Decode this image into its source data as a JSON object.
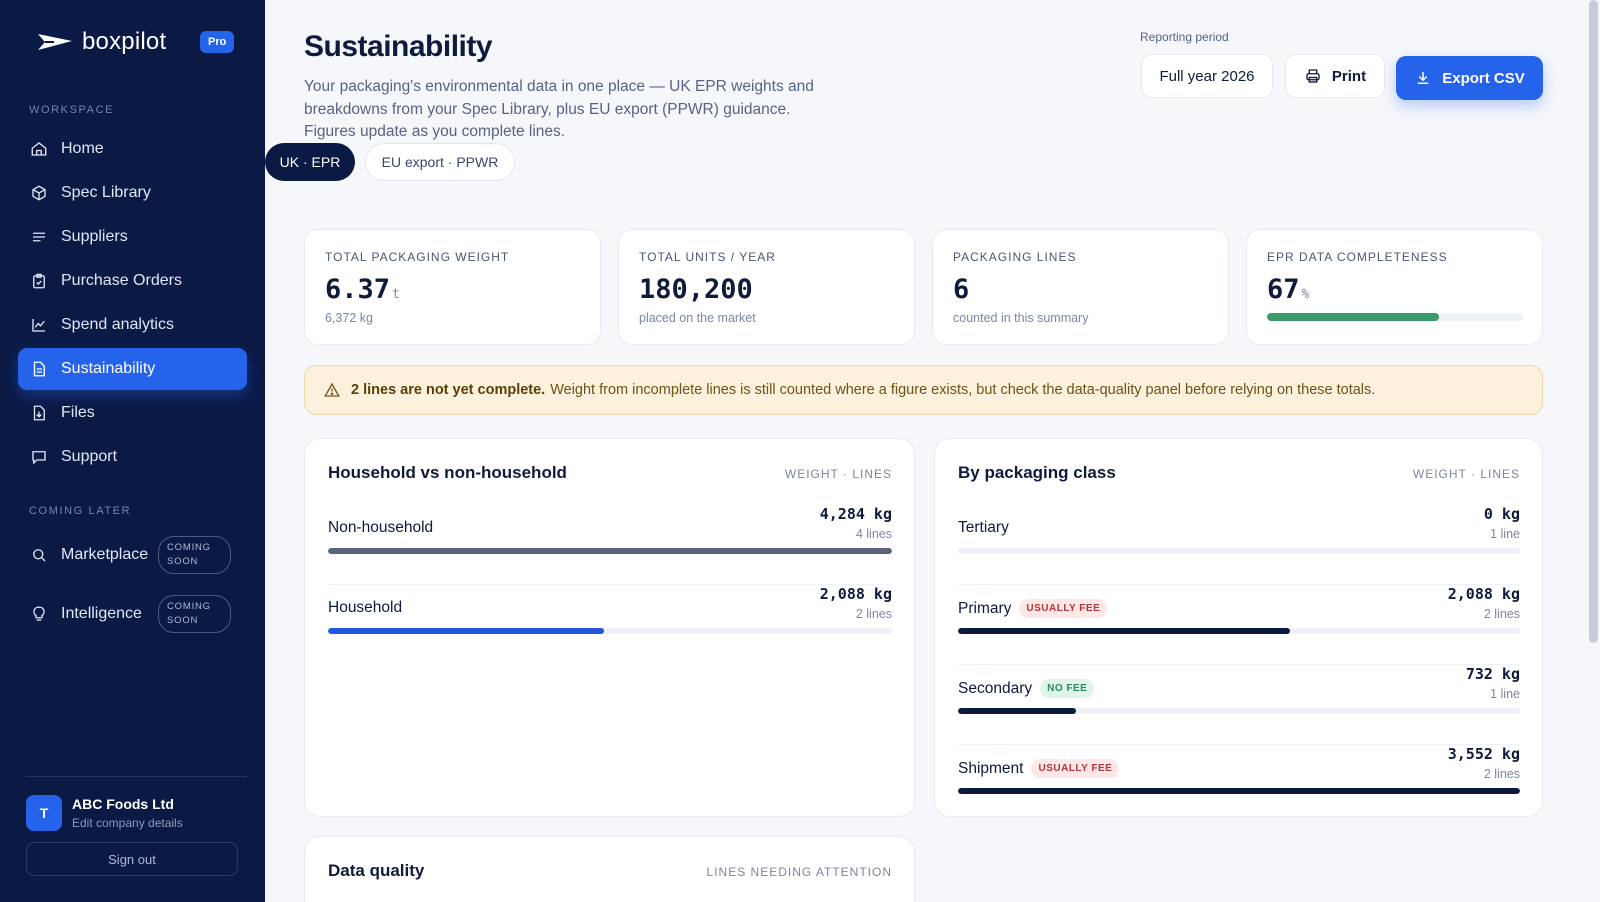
{
  "app": {
    "name": "boxpilot",
    "plan_badge": "Pro"
  },
  "sidebar": {
    "workspace_label": "WORKSPACE",
    "coming_label": "COMING LATER",
    "items": [
      {
        "label": "Home",
        "icon": "home-icon"
      },
      {
        "label": "Spec Library",
        "icon": "box-icon"
      },
      {
        "label": "Suppliers",
        "icon": "list-icon"
      },
      {
        "label": "Purchase Orders",
        "icon": "clipboard-icon"
      },
      {
        "label": "Spend analytics",
        "icon": "chart-icon"
      },
      {
        "label": "Sustainability",
        "icon": "document-icon",
        "active": true
      },
      {
        "label": "Files",
        "icon": "file-download-icon"
      },
      {
        "label": "Support",
        "icon": "chat-icon"
      }
    ],
    "coming": [
      {
        "label": "Marketplace",
        "icon": "search-icon",
        "badge": "COMING SOON"
      },
      {
        "label": "Intelligence",
        "icon": "lightbulb-icon",
        "badge": "COMING SOON"
      }
    ],
    "company": {
      "initial": "T",
      "name": "ABC Foods Ltd",
      "edit_label": "Edit company details"
    },
    "signout_label": "Sign out"
  },
  "header": {
    "title": "Sustainability",
    "description": "Your packaging's environmental data in one place — UK EPR weights and breakdowns from your Spec Library, plus EU export (PPWR) guidance. Figures update as you complete lines.",
    "period_label": "Reporting period",
    "period_value": "Full year 2026",
    "print_label": "Print",
    "export_label": "Export CSV"
  },
  "tabs": [
    {
      "label": "UK · EPR",
      "active": true
    },
    {
      "label": "EU export · PPWR",
      "active": false
    }
  ],
  "stats": [
    {
      "label": "TOTAL PACKAGING WEIGHT",
      "value": "6.37",
      "unit": "t",
      "sub": "6,372 kg"
    },
    {
      "label": "TOTAL UNITS / YEAR",
      "value": "180,200",
      "sub": "placed on the market"
    },
    {
      "label": "PACKAGING LINES",
      "value": "6",
      "sub": "counted in this summary"
    },
    {
      "label": "EPR DATA COMPLETENESS",
      "value": "67",
      "unit": "%",
      "progress": 0.67
    }
  ],
  "alert": {
    "bold": "2 lines are not yet complete.",
    "text": "Weight from incomplete lines is still counted where a figure exists, but check the data-quality panel before relying on these totals."
  },
  "household_panel": {
    "title": "Household vs non-household",
    "meta": "WEIGHT · LINES",
    "rows": [
      {
        "name": "Non-household",
        "weight": "4,284 kg",
        "lines": "4 lines",
        "fraction": 1.0,
        "color": "#5b6478"
      },
      {
        "name": "Household",
        "weight": "2,088 kg",
        "lines": "2 lines",
        "fraction": 0.49,
        "color": "#2456e0"
      }
    ]
  },
  "class_panel": {
    "title": "By packaging class",
    "meta": "WEIGHT · LINES",
    "rows": [
      {
        "name": "Tertiary",
        "badge": "",
        "weight": "0 kg",
        "lines": "1 line",
        "fraction": 0.0,
        "color": "#0b1a45"
      },
      {
        "name": "Primary",
        "badge": "USUALLY FEE",
        "weight": "2,088 kg",
        "lines": "2 lines",
        "fraction": 0.59,
        "color": "#0b1a45"
      },
      {
        "name": "Secondary",
        "badge": "NO FEE",
        "weight": "732 kg",
        "lines": "1 line",
        "fraction": 0.21,
        "color": "#0b1a45"
      },
      {
        "name": "Shipment",
        "badge": "USUALLY FEE",
        "weight": "3,552 kg",
        "lines": "2 lines",
        "fraction": 1.0,
        "color": "#0b1a45"
      }
    ]
  },
  "quality_panel": {
    "title": "Data quality",
    "meta": "LINES NEEDING ATTENTION"
  },
  "colors": {
    "sidebar_bg": "#0b1a45",
    "accent": "#2563eb",
    "progress": "#3a9a6a",
    "alert_bg": "#fbf1dc"
  }
}
